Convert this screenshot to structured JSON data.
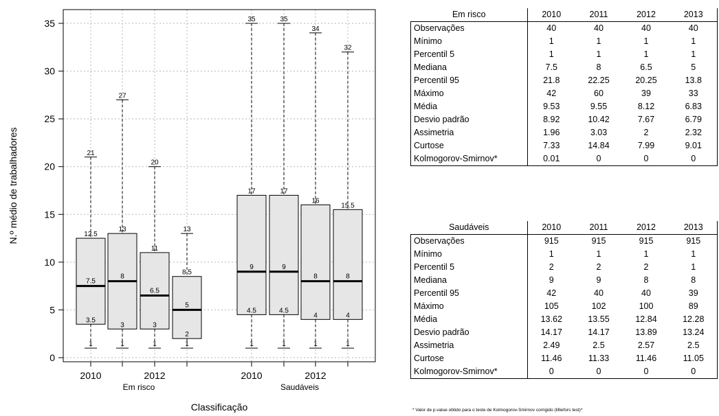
{
  "chart_data": {
    "type": "boxplot",
    "ylabel": "N.º médio de trabalhadores",
    "xlabel": "Classificação",
    "ylim": [
      0,
      35
    ],
    "yticks": [
      0,
      5,
      10,
      15,
      20,
      25,
      30,
      35
    ],
    "grid": true,
    "groups": [
      {
        "name": "Em risco",
        "tick_labels": [
          "2010",
          "",
          "2012",
          ""
        ],
        "boxes": [
          {
            "year": "2010",
            "min": 1,
            "q1": 3.5,
            "median": 7.5,
            "q3": 12.5,
            "whisker_high": 21,
            "labels": {
              "top": "21",
              "q3": "12.5",
              "median": "7.5",
              "q1": "3.5"
            }
          },
          {
            "year": "2011",
            "min": 1,
            "q1": 3,
            "median": 8,
            "q3": 13,
            "whisker_high": 27,
            "labels": {
              "top": "27",
              "q3": "13",
              "median": "8",
              "q1": "3"
            }
          },
          {
            "year": "2012",
            "min": 1,
            "q1": 3,
            "median": 6.5,
            "q3": 11,
            "whisker_high": 20,
            "labels": {
              "top": "20",
              "q3": "11",
              "median": "6.5",
              "q1": "3"
            }
          },
          {
            "year": "2013",
            "min": 1,
            "q1": 2,
            "median": 5,
            "q3": 8.5,
            "whisker_high": 13,
            "labels": {
              "top": "13",
              "q3": "8.5",
              "median": "5",
              "q1": "2"
            }
          }
        ]
      },
      {
        "name": "Saudáveis",
        "tick_labels": [
          "2010",
          "",
          "2012",
          ""
        ],
        "boxes": [
          {
            "year": "2010",
            "min": 1,
            "q1": 4.5,
            "median": 9,
            "q3": 17,
            "whisker_high": 35,
            "labels": {
              "top": "35",
              "q3": "17",
              "median": "9",
              "q1": "4.5"
            }
          },
          {
            "year": "2011",
            "min": 1,
            "q1": 4.5,
            "median": 9,
            "q3": 17,
            "whisker_high": 35,
            "labels": {
              "top": "35",
              "q3": "17",
              "median": "9",
              "q1": "4.5"
            }
          },
          {
            "year": "2012",
            "min": 1,
            "q1": 4,
            "median": 8,
            "q3": 16,
            "whisker_high": 34,
            "labels": {
              "top": "34",
              "q3": "16",
              "median": "8",
              "q1": "4"
            }
          },
          {
            "year": "2013",
            "min": 1,
            "q1": 4,
            "median": 8,
            "q3": 15.5,
            "whisker_high": 32,
            "labels": {
              "top": "32",
              "q3": "15.5",
              "median": "8",
              "q1": "4"
            }
          }
        ]
      }
    ],
    "min_label": "1",
    "colors": {
      "box_fill": "#e6e6e6",
      "stroke": "#000000",
      "grid": "#b4b4b4"
    }
  },
  "tables": [
    {
      "id": "em-risco",
      "header": [
        "Em risco",
        "2010",
        "2011",
        "2012",
        "2013"
      ],
      "rows": [
        [
          "Observações",
          "40",
          "40",
          "40",
          "40"
        ],
        [
          "Mínimo",
          "1",
          "1",
          "1",
          "1"
        ],
        [
          "Percentil 5",
          "1",
          "1",
          "1",
          "1"
        ],
        [
          "Mediana",
          "7.5",
          "8",
          "6.5",
          "5"
        ],
        [
          "Percentil 95",
          "21.8",
          "22.25",
          "20.25",
          "13.8"
        ],
        [
          "Máximo",
          "42",
          "60",
          "39",
          "33"
        ],
        [
          "Média",
          "9.53",
          "9.55",
          "8.12",
          "6.83"
        ],
        [
          "Desvio padrão",
          "8.92",
          "10.42",
          "7.67",
          "6.79"
        ],
        [
          "Assimetria",
          "1.96",
          "3.03",
          "2",
          "2.32"
        ],
        [
          "Curtose",
          "7.33",
          "14.84",
          "7.99",
          "9.01"
        ],
        [
          "Kolmogorov-Smirnov*",
          "0.01",
          "0",
          "0",
          "0"
        ]
      ]
    },
    {
      "id": "saudaveis",
      "header": [
        "Saudáveis",
        "2010",
        "2011",
        "2012",
        "2013"
      ],
      "rows": [
        [
          "Observações",
          "915",
          "915",
          "915",
          "915"
        ],
        [
          "Mínimo",
          "1",
          "1",
          "1",
          "1"
        ],
        [
          "Percentil 5",
          "2",
          "2",
          "2",
          "1"
        ],
        [
          "Mediana",
          "9",
          "9",
          "8",
          "8"
        ],
        [
          "Percentil 95",
          "42",
          "40",
          "40",
          "39"
        ],
        [
          "Máximo",
          "105",
          "102",
          "100",
          "89"
        ],
        [
          "Média",
          "13.62",
          "13.55",
          "12.84",
          "12.28"
        ],
        [
          "Desvio padrão",
          "14.17",
          "14.17",
          "13.89",
          "13.24"
        ],
        [
          "Assimetria",
          "2.49",
          "2.5",
          "2.57",
          "2.5"
        ],
        [
          "Curtose",
          "11.46",
          "11.33",
          "11.46",
          "11.05"
        ],
        [
          "Kolmogorov-Smirnov*",
          "0",
          "0",
          "0",
          "0"
        ]
      ]
    }
  ],
  "footnote": "* Valor de p.value obtido para o teste de Kolmogorov-Smirnov corrigido (lilliefors test)*"
}
